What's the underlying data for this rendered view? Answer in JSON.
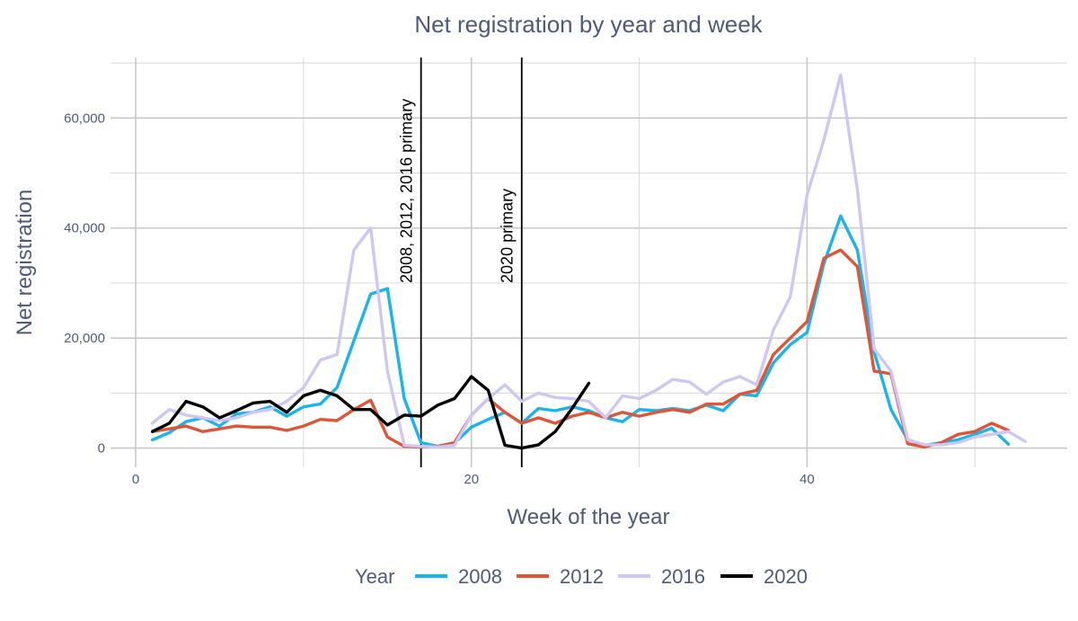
{
  "chart_data": {
    "type": "line",
    "title": "Net registration by year and week",
    "xlabel": "Week of the year",
    "ylabel": "Net registration",
    "xlim": [
      -1.5,
      55.5
    ],
    "ylim": [
      -3500,
      71000
    ],
    "x_ticks": [
      0,
      20,
      40
    ],
    "x_minor_ticks": [
      10,
      30,
      50
    ],
    "y_ticks": [
      0,
      20000,
      40000,
      60000
    ],
    "y_tick_labels": [
      "0",
      "20,000",
      "40,000",
      "60,000"
    ],
    "y_minor_ticks": [
      10000,
      30000,
      50000,
      70000
    ],
    "grid": true,
    "legend_title": "Year",
    "legend_position": "bottom",
    "vertical_lines": [
      {
        "x": 17,
        "label": "2008, 2012, 2016 primary"
      },
      {
        "x": 23,
        "label": "2020 primary"
      }
    ],
    "series": [
      {
        "name": "2008",
        "color": "#1ab4ec",
        "x": [
          1,
          2,
          3,
          4,
          5,
          6,
          7,
          8,
          9,
          10,
          11,
          12,
          13,
          14,
          15,
          16,
          17,
          18,
          19,
          20,
          21,
          22,
          23,
          24,
          25,
          26,
          27,
          28,
          29,
          30,
          31,
          32,
          33,
          34,
          35,
          36,
          37,
          38,
          39,
          40,
          41,
          42,
          43,
          44,
          45,
          46,
          47,
          48,
          49,
          50,
          51,
          52
        ],
        "y": [
          1500,
          2800,
          4800,
          5500,
          4000,
          6200,
          6500,
          7500,
          5800,
          7500,
          8000,
          11000,
          19500,
          28000,
          29000,
          9000,
          1000,
          300,
          900,
          3800,
          5200,
          6500,
          4500,
          7200,
          6800,
          7500,
          6800,
          5500,
          4800,
          7000,
          6800,
          7200,
          6800,
          7800,
          6800,
          9800,
          9500,
          15500,
          18800,
          21000,
          33500,
          42200,
          36000,
          17500,
          7000,
          1500,
          500,
          1000,
          1500,
          2500,
          3600,
          700
        ]
      },
      {
        "name": "2012",
        "color": "#e15537",
        "x": [
          1,
          2,
          3,
          4,
          5,
          6,
          7,
          8,
          9,
          10,
          11,
          12,
          13,
          14,
          15,
          16,
          17,
          18,
          19,
          20,
          21,
          22,
          23,
          24,
          25,
          26,
          27,
          28,
          29,
          30,
          31,
          32,
          33,
          34,
          35,
          36,
          37,
          38,
          39,
          40,
          41,
          42,
          43,
          44,
          45,
          46,
          47,
          48,
          49,
          50,
          51,
          52
        ],
        "y": [
          3000,
          3500,
          4000,
          3000,
          3500,
          4000,
          3800,
          3800,
          3200,
          4000,
          5200,
          5000,
          7000,
          8700,
          2000,
          300,
          200,
          300,
          1000,
          6000,
          9000,
          6500,
          4500,
          5500,
          4500,
          5800,
          6500,
          5500,
          6500,
          5800,
          6500,
          7000,
          6500,
          8000,
          8000,
          9800,
          10500,
          17000,
          20000,
          23000,
          34500,
          36000,
          33000,
          14000,
          13500,
          800,
          200,
          1000,
          2500,
          3000,
          4500,
          3200
        ]
      },
      {
        "name": "2016",
        "color": "#cfc7f3",
        "x": [
          1,
          2,
          3,
          4,
          5,
          6,
          7,
          8,
          9,
          10,
          11,
          12,
          13,
          14,
          15,
          16,
          17,
          18,
          19,
          20,
          21,
          22,
          23,
          24,
          25,
          26,
          27,
          28,
          29,
          30,
          31,
          32,
          33,
          34,
          35,
          36,
          37,
          38,
          39,
          40,
          41,
          42,
          43,
          44,
          45,
          46,
          47,
          48,
          49,
          50,
          51,
          52,
          53
        ],
        "y": [
          4500,
          7000,
          6000,
          5500,
          5000,
          5500,
          6500,
          7000,
          8500,
          11000,
          16000,
          17000,
          36000,
          40000,
          14000,
          500,
          300,
          200,
          500,
          6000,
          9000,
          11500,
          8500,
          10000,
          9200,
          9000,
          8500,
          5500,
          9500,
          9000,
          10500,
          12500,
          12000,
          9800,
          12000,
          13000,
          11500,
          21500,
          27500,
          46000,
          56000,
          67800,
          47000,
          18000,
          14000,
          1500,
          600,
          600,
          1000,
          2000,
          2500,
          3000,
          1200
        ]
      },
      {
        "name": "2020",
        "color": "#000000",
        "x": [
          1,
          2,
          3,
          4,
          5,
          6,
          7,
          8,
          9,
          10,
          11,
          12,
          13,
          14,
          15,
          16,
          17,
          18,
          19,
          20,
          21,
          22,
          23,
          24,
          25,
          26,
          27
        ],
        "y": [
          3000,
          4500,
          8500,
          7500,
          5500,
          6800,
          8200,
          8500,
          6500,
          9500,
          10500,
          9500,
          7000,
          7000,
          4200,
          6000,
          5800,
          7800,
          9000,
          13000,
          10500,
          500,
          0,
          600,
          3000,
          7200,
          11800
        ]
      }
    ]
  }
}
